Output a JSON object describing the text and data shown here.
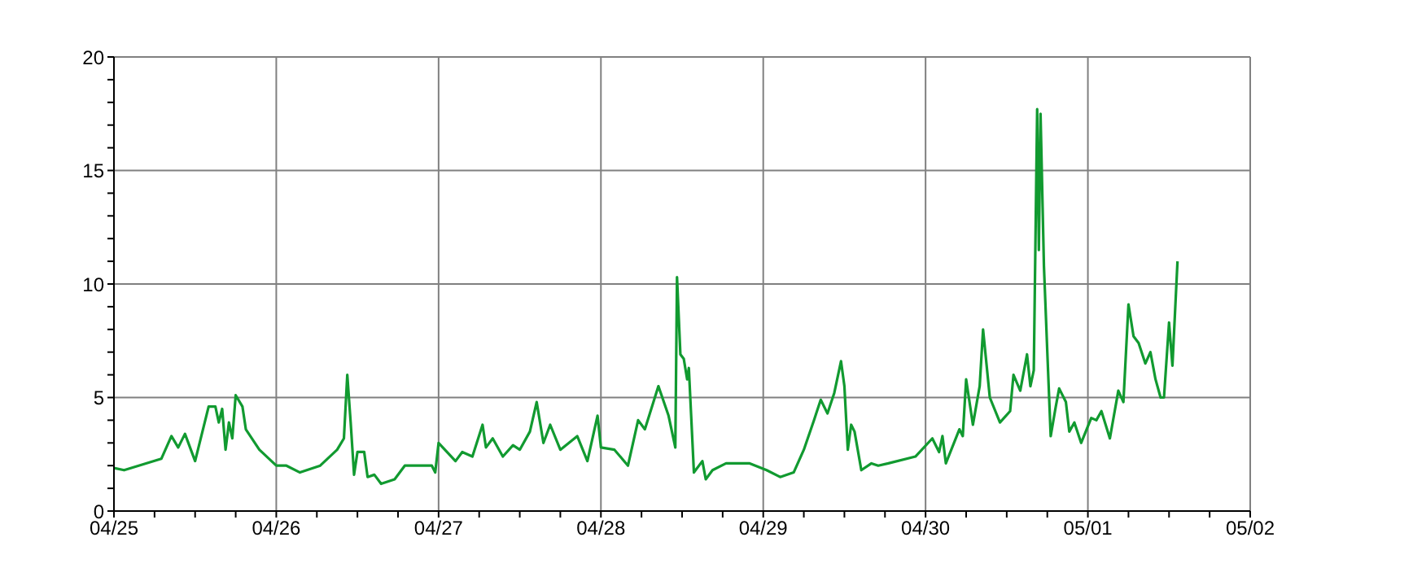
{
  "chart_data": {
    "type": "line",
    "x": [
      "--04-25T00:00",
      "--04-25T01:30",
      "--04-25T07:00",
      "--04-25T08:30",
      "--04-25T09:30",
      "--04-25T10:30",
      "--04-25T12:00",
      "--04-25T14:00",
      "--04-25T15:00",
      "--04-25T15:30",
      "--04-25T16:00",
      "--04-25T16:30",
      "--04-25T17:00",
      "--04-25T17:30",
      "--04-25T18:00",
      "--04-25T19:00",
      "--04-25T19:30",
      "--04-25T21:30",
      "--04-26T00:00",
      "--04-26T01:30",
      "--04-26T03:30",
      "--04-26T06:30",
      "--04-26T09:00",
      "--04-26T10:00",
      "--04-26T10:30",
      "--04-26T11:00",
      "--04-26T11:30",
      "--04-26T12:00",
      "--04-26T13:00",
      "--04-26T13:30",
      "--04-26T14:30",
      "--04-26T15:30",
      "--04-26T17:30",
      "--04-26T19:00",
      "--04-26T23:00",
      "--04-26T23:30",
      "--04-27T00:00",
      "--04-27T02:30",
      "--04-27T03:30",
      "--04-27T05:00",
      "--04-27T06:30",
      "--04-27T07:00",
      "--04-27T08:00",
      "--04-27T09:30",
      "--04-27T11:00",
      "--04-27T12:00",
      "--04-27T13:30",
      "--04-27T14:30",
      "--04-27T15:30",
      "--04-27T16:30",
      "--04-27T18:00",
      "--04-27T20:30",
      "--04-27T22:00",
      "--04-27T23:30",
      "--04-28T00:00",
      "--04-28T02:00",
      "--04-28T04:00",
      "--04-28T05:30",
      "--04-28T06:30",
      "--04-28T08:30",
      "--04-28T10:00",
      "--04-28T11:00",
      "--04-28T11:15",
      "--04-28T11:45",
      "--04-28T12:15",
      "--04-28T12:45",
      "--04-28T13:00",
      "--04-28T13:45",
      "--04-28T15:00",
      "--04-28T15:30",
      "--04-28T16:30",
      "--04-28T18:30",
      "--04-28T22:00",
      "--04-29T00:30",
      "--04-29T02:30",
      "--04-29T04:30",
      "--04-29T06:00",
      "--04-29T07:30",
      "--04-29T08:30",
      "--04-29T09:30",
      "--04-29T10:30",
      "--04-29T11:30",
      "--04-29T12:00",
      "--04-29T12:30",
      "--04-29T13:00",
      "--04-29T13:30",
      "--04-29T14:30",
      "--04-29T16:00",
      "--04-29T17:00",
      "--04-29T18:30",
      "--04-29T22:30",
      "--04-30T01:00",
      "--04-30T02:00",
      "--04-30T02:30",
      "--04-30T03:00",
      "--04-30T05:00",
      "--04-30T05:30",
      "--04-30T06:00",
      "--04-30T07:00",
      "--04-30T08:00",
      "--04-30T08:30",
      "--04-30T09:30",
      "--04-30T11:00",
      "--04-30T12:30",
      "--04-30T13:00",
      "--04-30T14:00",
      "--04-30T15:00",
      "--04-30T15:30",
      "--04-30T16:00",
      "--04-30T16:30",
      "--04-30T16:45",
      "--04-30T17:00",
      "--04-30T17:30",
      "--04-30T18:00",
      "--04-30T18:30",
      "--04-30T19:15",
      "--04-30T19:45",
      "--04-30T20:45",
      "--04-30T21:15",
      "--04-30T22:00",
      "--04-30T23:00",
      "--05-01T00:30",
      "--05-01T01:15",
      "--05-01T02:00",
      "--05-01T03:15",
      "--05-01T04:30",
      "--05-01T05:15",
      "--05-01T06:00",
      "--05-01T06:45",
      "--05-01T07:30",
      "--05-01T08:30",
      "--05-01T09:15",
      "--05-01T10:00",
      "--05-01T10:45",
      "--05-01T11:15",
      "--05-01T12:00",
      "--05-01T12:30",
      "--05-01T13:15"
    ],
    "series": [
      {
        "color": "#119a30",
        "values": [
          1.9,
          1.8,
          2.3,
          3.3,
          2.8,
          3.4,
          2.2,
          4.6,
          4.6,
          3.9,
          4.5,
          2.7,
          3.9,
          3.2,
          5.1,
          4.6,
          3.6,
          2.7,
          2.0,
          2.0,
          1.7,
          2.0,
          2.7,
          3.2,
          6.0,
          3.9,
          1.6,
          2.6,
          2.6,
          1.5,
          1.6,
          1.2,
          1.4,
          2.0,
          2.0,
          1.7,
          3.0,
          2.2,
          2.6,
          2.4,
          3.8,
          2.8,
          3.2,
          2.4,
          2.9,
          2.7,
          3.5,
          4.8,
          3.0,
          3.8,
          2.7,
          3.3,
          2.2,
          4.2,
          2.8,
          2.7,
          2.0,
          4.0,
          3.6,
          5.5,
          4.2,
          2.8,
          10.3,
          6.9,
          6.7,
          5.8,
          6.3,
          1.7,
          2.2,
          1.4,
          1.8,
          2.1,
          2.1,
          1.8,
          1.5,
          1.7,
          2.7,
          4.0,
          4.9,
          4.3,
          5.2,
          6.6,
          5.5,
          2.7,
          3.8,
          3.5,
          1.8,
          2.1,
          2.0,
          2.1,
          2.4,
          3.2,
          2.6,
          3.3,
          2.1,
          3.6,
          3.3,
          5.8,
          3.8,
          5.5,
          8.0,
          5.0,
          3.9,
          4.4,
          6.0,
          5.3,
          6.9,
          5.5,
          6.2,
          17.7,
          11.5,
          17.5,
          10.8,
          7.0,
          3.3,
          4.6,
          5.4,
          4.8,
          3.5,
          3.9,
          3.0,
          4.1,
          4.0,
          4.4,
          3.2,
          5.3,
          4.8,
          9.1,
          7.7,
          7.4,
          6.5,
          7.0,
          5.8,
          5.0,
          5.0,
          8.3,
          6.4,
          11.0
        ]
      }
    ],
    "xlim": [
      "--04-25",
      "--05-02"
    ],
    "xticks": [
      {
        "value": "--04-25",
        "label": "04/25"
      },
      {
        "value": "--04-25T06:00",
        "label": null
      },
      {
        "value": "--04-25T12:00",
        "label": null
      },
      {
        "value": "--04-25T18:00",
        "label": null
      },
      {
        "value": "--04-26",
        "label": "04/26"
      },
      {
        "value": "--04-26T06:00",
        "label": null
      },
      {
        "value": "--04-26T12:00",
        "label": null
      },
      {
        "value": "--04-26T18:00",
        "label": null
      },
      {
        "value": "--04-27",
        "label": "04/27"
      },
      {
        "value": "--04-27T06:00",
        "label": null
      },
      {
        "value": "--04-27T12:00",
        "label": null
      },
      {
        "value": "--04-27T18:00",
        "label": null
      },
      {
        "value": "--04-28",
        "label": "04/28"
      },
      {
        "value": "--04-28T06:00",
        "label": null
      },
      {
        "value": "--04-28T12:00",
        "label": null
      },
      {
        "value": "--04-28T18:00",
        "label": null
      },
      {
        "value": "--04-29",
        "label": "04/29"
      },
      {
        "value": "--04-29T06:00",
        "label": null
      },
      {
        "value": "--04-29T12:00",
        "label": null
      },
      {
        "value": "--04-29T18:00",
        "label": null
      },
      {
        "value": "--04-30",
        "label": "04/30"
      },
      {
        "value": "--04-30T06:00",
        "label": null
      },
      {
        "value": "--04-30T12:00",
        "label": null
      },
      {
        "value": "--04-30T18:00",
        "label": null
      },
      {
        "value": "--05-01",
        "label": "05/01"
      },
      {
        "value": "--05-01T06:00",
        "label": null
      },
      {
        "value": "--05-01T12:00",
        "label": null
      },
      {
        "value": "--05-01T18:00",
        "label": null
      },
      {
        "value": "--05-02",
        "label": "05/02"
      }
    ],
    "ylim": [
      0,
      20
    ],
    "yticks": [
      0,
      {
        "value": 1,
        "label": null
      },
      {
        "value": 2,
        "label": null
      },
      {
        "value": 3,
        "label": null
      },
      {
        "value": 4,
        "label": null
      },
      5,
      {
        "value": 6,
        "label": null
      },
      {
        "value": 7,
        "label": null
      },
      {
        "value": 8,
        "label": null
      },
      {
        "value": 9,
        "label": null
      },
      10,
      {
        "value": 11,
        "label": null
      },
      {
        "value": 12,
        "label": null
      },
      {
        "value": 13,
        "label": null
      },
      {
        "value": 14,
        "label": null
      },
      15,
      {
        "value": 16,
        "label": null
      },
      {
        "value": 17,
        "label": null
      },
      {
        "value": 18,
        "label": null
      },
      {
        "value": 19,
        "label": null
      },
      20
    ],
    "grid": true,
    "marker": "none",
    "line_style": "solid"
  }
}
